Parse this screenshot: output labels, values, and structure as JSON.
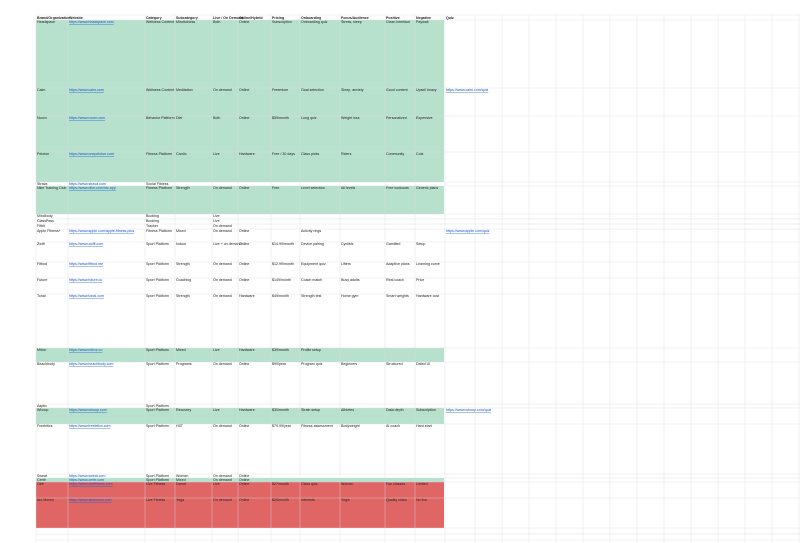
{
  "sheet": {
    "header": [
      "Brand/Organization",
      "Website",
      "Category",
      "Subcategory",
      "Live / On Demand",
      "Online/Hybrid",
      "Pricing",
      "Onboarding",
      "Focus/Audience",
      "Positive",
      "Negative",
      "Quiz"
    ],
    "rows": [
      {
        "color": "#b7e1cd",
        "cells": [
          "Headspace",
          "https://www.headspace.com",
          "Wellness Content",
          "Mindfulness",
          "Both",
          "Online",
          "Subscription",
          "Onboarding quiz",
          "Stress, sleep",
          "Clean interface",
          "Paywall",
          null
        ]
      },
      {
        "color": "#b7e1cd",
        "cells": [
          "Calm",
          "https://www.calm.com",
          "Wellness Content",
          "Meditation",
          "On demand",
          "Online",
          "Freemium",
          "Goal selection",
          "Sleep, anxiety",
          "Good content",
          "Upsell heavy",
          "https://www.calm.com/quiz"
        ]
      },
      {
        "color": "#b7e1cd",
        "cells": [
          "Noom",
          "https://www.noom.com",
          "Behavior Platform",
          "Diet",
          "Both",
          "Online",
          "$59/month",
          "Long quiz",
          "Weight loss",
          "Personalized",
          "Expensive",
          null
        ]
      },
      {
        "color": "#b7e1cd",
        "cells": [
          "Peloton",
          "https://www.onepeloton.com",
          "Fitness Platform",
          "Cardio",
          "Live",
          "Hardware",
          "Free / 30 days",
          "Class picks",
          "Riders",
          "Community",
          "Cost",
          null
        ]
      },
      {
        "color": "#ffffff",
        "cells": [
          "Strava",
          "https://www.strava.com",
          "Social Fitness",
          null,
          null,
          null,
          null,
          null,
          null,
          null,
          null,
          null
        ]
      },
      {
        "color": "#b7e1cd",
        "cells": [
          "Nike Training Club",
          "https://www.nike.com/ntc-app",
          "Fitness Platform",
          "Strength",
          "On demand",
          "Online",
          "Free",
          "Level selection",
          "All levels",
          "Free workouts",
          "Generic plans",
          null
        ]
      },
      {
        "color": "#ffffff",
        "cells": [
          "Mindbody",
          null,
          "Booking",
          null,
          "Live",
          null,
          null,
          null,
          null,
          null,
          null,
          null
        ]
      },
      {
        "color": "#ffffff",
        "cells": [
          "ClassPass",
          null,
          "Booking",
          null,
          "Live",
          null,
          null,
          null,
          null,
          null,
          null,
          null
        ]
      },
      {
        "color": "#ffffff",
        "cells": [
          "Fitbit",
          null,
          "Tracker",
          null,
          "On demand",
          null,
          null,
          null,
          null,
          null,
          null,
          null
        ]
      },
      {
        "color": "#ffffff",
        "cells": [
          "Apple Fitness+",
          "https://www.apple.com/apple-fitness-plus",
          "Fitness Platform",
          "Mixed",
          "On demand",
          "Online",
          null,
          "Activity rings",
          null,
          null,
          null,
          "https://www.apple.com/quiz"
        ]
      },
      {
        "color": "#ffffff",
        "cells": [
          "Zwift",
          "https://www.zwift.com",
          "Sport Platform",
          "Indoor",
          "Live + on demand",
          "Online",
          "$14.99/month",
          "Device pairing",
          "Cyclists",
          "Gamified",
          "Setup",
          null
        ]
      },
      {
        "color": "#ffffff",
        "cells": [
          "Fitbod",
          "https://www.fitbod.me",
          "Sport Platform",
          "Strength",
          "On demand",
          "Online",
          "$12.99/month",
          "Equipment quiz",
          "Lifters",
          "Adaptive plans",
          "Learning curve",
          null
        ]
      },
      {
        "color": "#ffffff",
        "cells": [
          "Future",
          "https://www.future.co",
          "Sport Platform",
          "Coaching",
          "On demand",
          "Online",
          "$149/month",
          "Coach match",
          "Busy adults",
          "Real coach",
          "Price",
          null
        ]
      },
      {
        "color": "#ffffff",
        "cells": [
          "Tonal",
          "https://www.tonal.com",
          "Sport Platform",
          "Strength",
          "On demand",
          "Hardware",
          "$49/month",
          "Strength test",
          "Home gym",
          "Smart weights",
          "Hardware cost",
          null
        ]
      },
      {
        "color": "#b7e1cd",
        "cells": [
          "Mirror",
          "https://www.mirror.co",
          "Sport Platform",
          "Mixed",
          "Live",
          "Hardware",
          "$39/month",
          "Profile setup",
          null,
          null,
          null,
          null
        ]
      },
      {
        "color": "#ffffff",
        "cells": [
          "Beachbody",
          "https://www.beachbody.com",
          "Sport Platform",
          "Programs",
          "On demand",
          "Online",
          "$99/year",
          "Program quiz",
          "Beginners",
          "Structured",
          "Dated UI",
          null
        ]
      },
      {
        "color": "#ffffff",
        "cells": [
          "Aaptiv",
          null,
          "Sport Platform",
          null,
          null,
          null,
          null,
          null,
          null,
          null,
          null,
          null
        ]
      },
      {
        "color": "#b7e1cd",
        "cells": [
          "Whoop",
          "https://www.whoop.com",
          "Sport Platform",
          "Recovery",
          "Live",
          "Hardware",
          "$30/month",
          "Strain setup",
          "Athletes",
          "Data depth",
          "Subscription",
          "https://www.whoop.com/quiz"
        ]
      },
      {
        "color": "#ffffff",
        "cells": [
          "Freeletics",
          "https://www.freeletics.com",
          "Sport Platform",
          "HIIT",
          "On demand",
          "Online",
          "$79.99/year",
          "Fitness assessment",
          "Bodyweight",
          "AI coach",
          "Hard start",
          null
        ]
      },
      {
        "color": "#ffffff",
        "cells": [
          "Sweat",
          "https://www.sweat.com",
          "Sport Platform",
          "Women",
          "On demand",
          "Online",
          null,
          null,
          null,
          null,
          null,
          null
        ]
      },
      {
        "color": "#b7e1cd",
        "cells": [
          "Centr",
          "https://www.centr.com",
          "Sport Platform",
          "Mixed",
          "On demand",
          "Online",
          null,
          null,
          null,
          null,
          null,
          null
        ]
      },
      {
        "color": "#e06666",
        "cells": [
          "Obé",
          "https://www.obefitness.com",
          "Live Fitness",
          "Dance",
          "Live",
          "Online",
          "$27/month",
          "Class quiz",
          "Women",
          "Fun classes",
          "Limited",
          null
        ]
      },
      {
        "color": "#e06666",
        "cells": [
          "Alo Moves",
          "https://www.alomoves.com",
          "Live Fitness",
          "Yoga",
          "On demand",
          "Online",
          "$20/month",
          "Interests",
          "Yogis",
          "Quality video",
          "No live",
          null
        ]
      }
    ]
  }
}
